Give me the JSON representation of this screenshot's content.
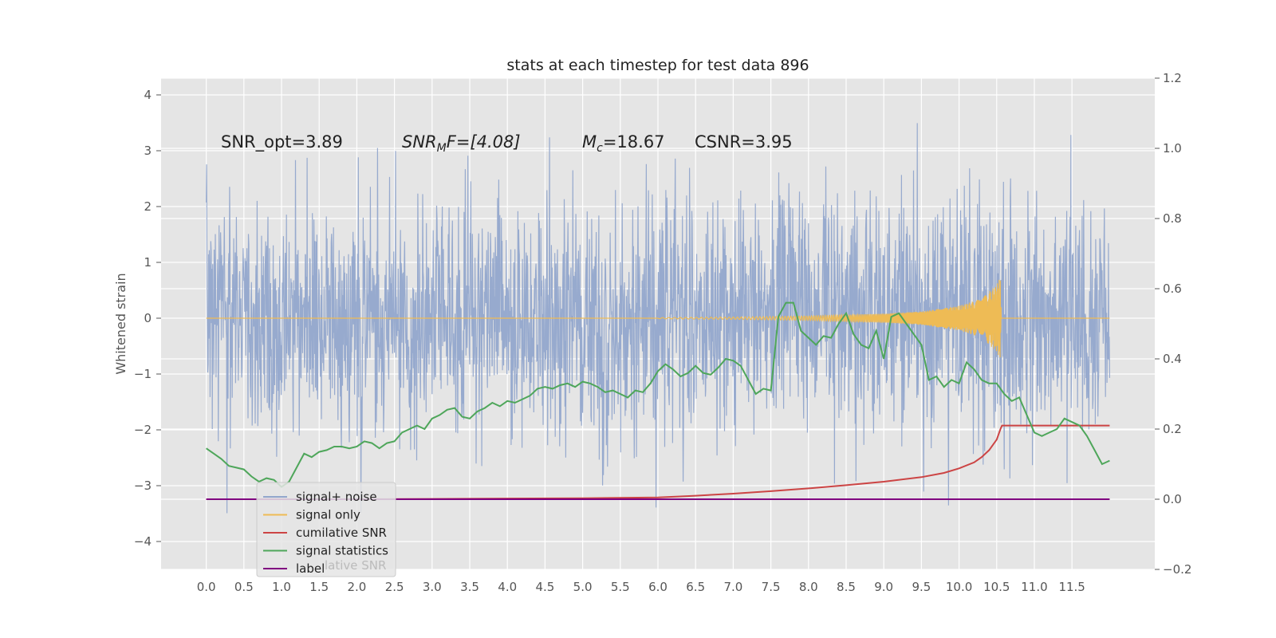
{
  "chart_data": {
    "type": "line",
    "title": "stats at each timestep for test data 896",
    "ylabel": "Whitened strain",
    "xlabel": "",
    "x_ticks": [
      "0.0",
      "0.5",
      "1.0",
      "1.5",
      "2.0",
      "2.5",
      "3.0",
      "3.5",
      "4.0",
      "4.5",
      "5.0",
      "5.5",
      "6.0",
      "6.5",
      "7.0",
      "7.5",
      "8.0",
      "8.5",
      "9.0",
      "9.5",
      "10.0",
      "10.5",
      "11.0",
      "11.5"
    ],
    "xlim": [
      -0.6,
      12.6
    ],
    "ylim_left": [
      -4.5,
      4.3
    ],
    "ylim_right": [
      -0.2,
      1.2
    ],
    "y_ticks_left": [
      "−4",
      "−3",
      "−2",
      "−1",
      "0",
      "1",
      "2",
      "3",
      "4"
    ],
    "y_ticks_right": [
      "−0.2",
      "0.0",
      "0.2",
      "0.4",
      "0.6",
      "0.8",
      "1.0",
      "1.2"
    ],
    "grid": true,
    "legend_position": "lower-left",
    "annotations": {
      "snr_opt": "SNR_opt=3.89",
      "snr_mf_main": "SNR",
      "snr_mf_sub": "M",
      "snr_mf_rest": "F=[4.08]",
      "mc_main": "M",
      "mc_sub": "c",
      "mc_rest": "=18.67",
      "csnr": "CSNR=3.95"
    },
    "series": [
      {
        "name": "signal+ noise",
        "color": "#92a6cc",
        "axis": "left",
        "x_range": [
          0,
          12
        ],
        "approx_range": [
          -4.1,
          3.95
        ]
      },
      {
        "name": "signal only",
        "color": "#eebb55",
        "axis": "left",
        "envelope": [
          [
            6.0,
            0.01
          ],
          [
            7.0,
            0.02
          ],
          [
            8.0,
            0.04
          ],
          [
            8.5,
            0.06
          ],
          [
            9.0,
            0.08
          ],
          [
            9.5,
            0.12
          ],
          [
            10.0,
            0.22
          ],
          [
            10.3,
            0.35
          ],
          [
            10.5,
            0.6
          ],
          [
            10.55,
            0.75
          ],
          [
            10.56,
            0.0
          ],
          [
            12.0,
            0.0
          ]
        ]
      },
      {
        "name": "cumilative SNR",
        "color": "#cc4444",
        "axis": "right",
        "x": [
          0,
          1,
          2,
          3,
          4,
          5,
          6,
          6.5,
          7,
          7.5,
          8,
          8.5,
          9,
          9.5,
          9.8,
          10,
          10.2,
          10.3,
          10.4,
          10.5,
          10.55,
          10.57,
          12
        ],
        "y": [
          0,
          0,
          0,
          0.001,
          0.002,
          0.003,
          0.005,
          0.01,
          0.016,
          0.023,
          0.031,
          0.04,
          0.05,
          0.063,
          0.075,
          0.088,
          0.105,
          0.12,
          0.14,
          0.17,
          0.2,
          0.21,
          0.21
        ]
      },
      {
        "name": "signal statistics",
        "color": "#4ea65a",
        "axis": "right",
        "x": [
          0,
          0.1,
          0.2,
          0.3,
          0.4,
          0.5,
          0.6,
          0.7,
          0.8,
          0.9,
          1.0,
          1.1,
          1.2,
          1.3,
          1.4,
          1.5,
          1.6,
          1.7,
          1.8,
          1.9,
          2.0,
          2.1,
          2.2,
          2.3,
          2.4,
          2.5,
          2.6,
          2.7,
          2.8,
          2.9,
          3.0,
          3.1,
          3.2,
          3.3,
          3.4,
          3.5,
          3.6,
          3.7,
          3.8,
          3.9,
          4.0,
          4.1,
          4.2,
          4.3,
          4.4,
          4.5,
          4.6,
          4.7,
          4.8,
          4.9,
          5.0,
          5.1,
          5.2,
          5.3,
          5.4,
          5.5,
          5.6,
          5.7,
          5.8,
          5.9,
          6.0,
          6.1,
          6.2,
          6.3,
          6.4,
          6.5,
          6.6,
          6.7,
          6.8,
          6.9,
          7.0,
          7.1,
          7.2,
          7.3,
          7.4,
          7.5,
          7.6,
          7.7,
          7.8,
          7.9,
          8.0,
          8.1,
          8.2,
          8.3,
          8.4,
          8.5,
          8.6,
          8.7,
          8.8,
          8.9,
          9.0,
          9.1,
          9.2,
          9.3,
          9.4,
          9.5,
          9.6,
          9.7,
          9.8,
          9.9,
          10.0,
          10.1,
          10.2,
          10.3,
          10.4,
          10.5,
          10.6,
          10.7,
          10.8,
          10.9,
          11.0,
          11.1,
          11.2,
          11.3,
          11.4,
          11.5,
          11.6,
          11.7,
          11.8,
          11.9,
          12.0
        ],
        "y": [
          0.145,
          0.13,
          0.115,
          0.095,
          0.09,
          0.085,
          0.065,
          0.05,
          0.06,
          0.055,
          0.035,
          0.05,
          0.09,
          0.13,
          0.12,
          0.135,
          0.14,
          0.15,
          0.15,
          0.145,
          0.15,
          0.165,
          0.16,
          0.145,
          0.16,
          0.165,
          0.19,
          0.2,
          0.21,
          0.2,
          0.23,
          0.24,
          0.255,
          0.26,
          0.235,
          0.23,
          0.25,
          0.26,
          0.275,
          0.265,
          0.28,
          0.275,
          0.285,
          0.295,
          0.315,
          0.32,
          0.315,
          0.325,
          0.33,
          0.32,
          0.335,
          0.33,
          0.32,
          0.305,
          0.31,
          0.3,
          0.29,
          0.31,
          0.305,
          0.33,
          0.365,
          0.385,
          0.37,
          0.35,
          0.36,
          0.38,
          0.36,
          0.355,
          0.375,
          0.4,
          0.395,
          0.38,
          0.34,
          0.3,
          0.315,
          0.31,
          0.52,
          0.56,
          0.56,
          0.48,
          0.46,
          0.44,
          0.465,
          0.46,
          0.5,
          0.53,
          0.47,
          0.44,
          0.43,
          0.48,
          0.4,
          0.52,
          0.53,
          0.5,
          0.47,
          0.44,
          0.34,
          0.35,
          0.32,
          0.34,
          0.33,
          0.39,
          0.37,
          0.34,
          0.33,
          0.33,
          0.3,
          0.28,
          0.29,
          0.24,
          0.19,
          0.18,
          0.19,
          0.2,
          0.23,
          0.22,
          0.21,
          0.18,
          0.14,
          0.1,
          0.11
        ]
      },
      {
        "name": "label",
        "color": "#800080",
        "axis": "right",
        "x": [
          0,
          12
        ],
        "y": [
          0.0,
          0.0
        ]
      }
    ],
    "legend_hidden_text": "lative SNR"
  }
}
